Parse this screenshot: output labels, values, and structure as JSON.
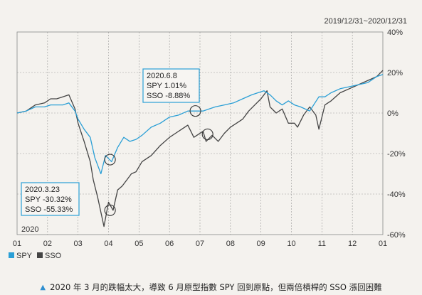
{
  "chart_data": {
    "type": "line",
    "title": "",
    "date_range_label": "2019/12/31~2020/12/31",
    "year_label": "2020",
    "x_tick_labels": [
      "01",
      "02",
      "03",
      "04",
      "05",
      "06",
      "07",
      "08",
      "09",
      "10",
      "11",
      "12",
      "01"
    ],
    "y_ticks": [
      40,
      20,
      0,
      -20,
      -40,
      -60
    ],
    "y_tick_labels": [
      "40%",
      "20%",
      "0%",
      "-20%",
      "-40%",
      "-60%"
    ],
    "ylim": [
      -60,
      40
    ],
    "xlim": [
      0,
      12
    ],
    "grid": true,
    "legend_position": "bottom-left",
    "series": [
      {
        "name": "SPY",
        "color": "#2a9fd6",
        "x": [
          0,
          0.3,
          0.6,
          0.9,
          1.1,
          1.3,
          1.5,
          1.7,
          1.9,
          2.0,
          2.2,
          2.4,
          2.55,
          2.75,
          2.9,
          3.1,
          3.3,
          3.5,
          3.7,
          3.9,
          4.1,
          4.4,
          4.7,
          5.0,
          5.3,
          5.6,
          5.8,
          6.1,
          6.3,
          6.5,
          6.8,
          7.1,
          7.4,
          7.7,
          7.9,
          8.1,
          8.3,
          8.5,
          8.7,
          8.9,
          9.1,
          9.3,
          9.6,
          9.9,
          10.1,
          10.3,
          10.6,
          10.9,
          11.2,
          11.5,
          11.8,
          12
        ],
        "y": [
          0,
          1,
          3,
          3,
          4,
          4,
          4,
          5,
          1,
          -3,
          -8,
          -12,
          -22,
          -30,
          -21,
          -24,
          -17,
          -12,
          -14,
          -13,
          -11,
          -7,
          -5,
          -2,
          -1,
          1,
          1,
          1,
          2,
          3,
          4,
          5,
          7,
          9,
          10,
          11,
          9,
          6,
          4,
          6,
          4,
          3,
          1,
          8,
          8,
          10,
          12,
          13,
          14,
          15,
          18,
          19
        ]
      },
      {
        "name": "SSO",
        "color": "#444444",
        "x": [
          0,
          0.3,
          0.6,
          0.9,
          1.1,
          1.3,
          1.5,
          1.7,
          1.9,
          2.0,
          2.2,
          2.4,
          2.5,
          2.65,
          2.85,
          3.0,
          3.15,
          3.3,
          3.45,
          3.6,
          3.75,
          3.9,
          4.1,
          4.4,
          4.7,
          5.0,
          5.2,
          5.4,
          5.6,
          5.8,
          6.1,
          6.2,
          6.4,
          6.6,
          6.8,
          7.0,
          7.2,
          7.4,
          7.6,
          7.8,
          8.0,
          8.2,
          8.3,
          8.5,
          8.7,
          8.9,
          9.1,
          9.2,
          9.4,
          9.6,
          9.8,
          9.9,
          10.1,
          10.3,
          10.6,
          10.9,
          11.2,
          11.5,
          11.8,
          12
        ],
        "y": [
          0,
          1,
          4,
          5,
          7,
          7,
          8,
          9,
          2,
          -5,
          -14,
          -24,
          -33,
          -42,
          -56,
          -44,
          -48,
          -38,
          -36,
          -33,
          -30,
          -29,
          -24,
          -21,
          -16,
          -12,
          -10,
          -8,
          -6,
          -12,
          -9,
          -14,
          -11,
          -14,
          -10,
          -7,
          -5,
          -3,
          1,
          4,
          7,
          11,
          3,
          0,
          2,
          -5,
          -5,
          -7,
          -1,
          3,
          -1,
          -8,
          4,
          6,
          10,
          12,
          14,
          16,
          18,
          21
        ]
      }
    ],
    "annotations": [
      {
        "lines": [
          "2020.6.8",
          "SPY 1.01%",
          "SSO -8.88%"
        ]
      },
      {
        "lines": [
          "2020.3.23",
          "SPY -30.32%",
          "SSO -55.33%"
        ]
      }
    ],
    "markers": [
      {
        "x": 5.85,
        "y": 1.01
      },
      {
        "x": 6.25,
        "y": -10.5
      },
      {
        "x": 3.05,
        "y": -23
      },
      {
        "x": 3.05,
        "y": -48
      }
    ]
  },
  "legend": [
    {
      "name": "SPY",
      "color": "#2a9fd6"
    },
    {
      "name": "SSO",
      "color": "#444444"
    }
  ],
  "caption": "2020 年 3 月的跌幅太大，導致 6 月原型指數 SPY 回到原點，但兩倍槓桿的 SSO 漲回困難"
}
